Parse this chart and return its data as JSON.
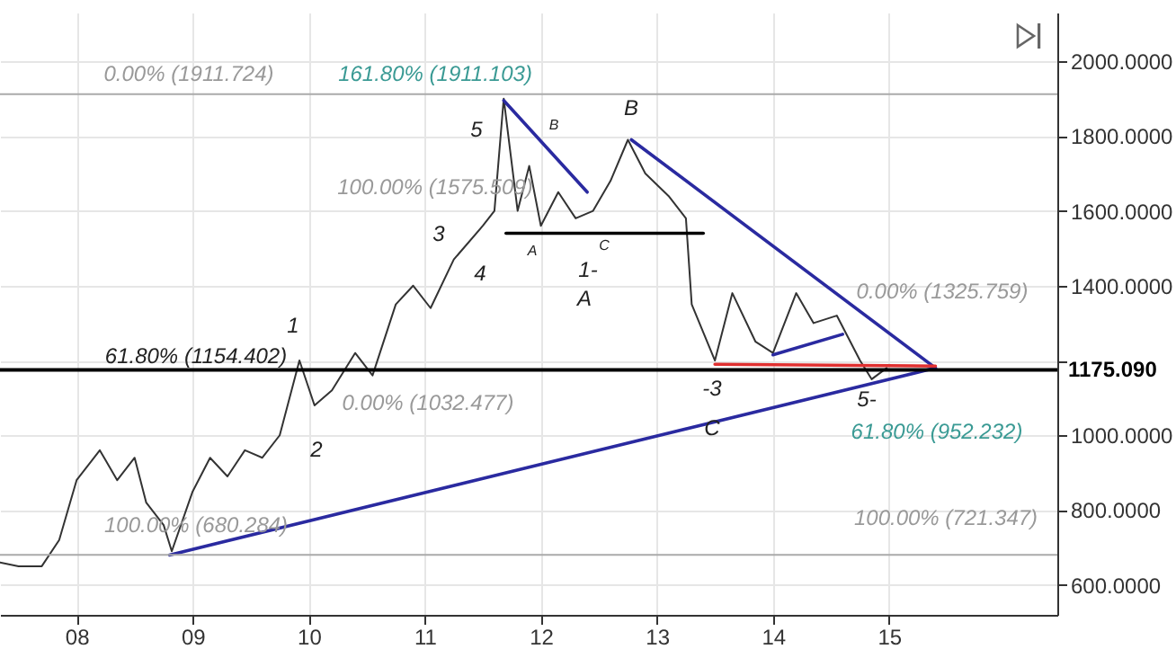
{
  "chart_data": {
    "type": "line",
    "xlim": [
      2007.34,
      2016.45
    ],
    "ylim": [
      520,
      2130
    ],
    "xticks": [
      {
        "value": 2008,
        "label": "08"
      },
      {
        "value": 2009,
        "label": "09"
      },
      {
        "value": 2010,
        "label": "10"
      },
      {
        "value": 2011,
        "label": "11"
      },
      {
        "value": 2012,
        "label": "12"
      },
      {
        "value": 2013,
        "label": "13"
      },
      {
        "value": 2014,
        "label": "14"
      },
      {
        "value": 2015,
        "label": "15"
      }
    ],
    "yticks": [
      {
        "value": 600,
        "label": "600.0000"
      },
      {
        "value": 800,
        "label": "800.0000"
      },
      {
        "value": 1000,
        "label": "1000.0000"
      },
      {
        "value": 1200,
        "label": null
      },
      {
        "value": 1400,
        "label": "1400.0000"
      },
      {
        "value": 1600,
        "label": "1600.0000"
      },
      {
        "value": 1800,
        "label": "1800.0000"
      },
      {
        "value": 2000,
        "label": "2000.0000"
      }
    ],
    "grid": true,
    "series": [
      {
        "color": "#333333",
        "x": [
          2007.34,
          2007.5,
          2007.7,
          2007.85,
          2008.0,
          2008.2,
          2008.35,
          2008.5,
          2008.6,
          2008.75,
          2008.82,
          2009.0,
          2009.15,
          2009.3,
          2009.45,
          2009.6,
          2009.75,
          2009.92,
          2010.05,
          2010.2,
          2010.4,
          2010.55,
          2010.75,
          2010.9,
          2011.05,
          2011.25,
          2011.5,
          2011.6,
          2011.68,
          2011.8,
          2011.9,
          2012.0,
          2012.15,
          2012.3,
          2012.45,
          2012.6,
          2012.75,
          2012.9,
          2013.1,
          2013.25,
          2013.3,
          2013.5,
          2013.65,
          2013.85,
          2014.0,
          2014.2,
          2014.35,
          2014.55,
          2014.75,
          2014.85,
          2014.98
        ],
        "values": [
          660,
          650,
          650,
          720,
          880,
          960,
          880,
          940,
          820,
          760,
          690,
          850,
          940,
          890,
          960,
          940,
          1000,
          1200,
          1080,
          1120,
          1220,
          1160,
          1350,
          1400,
          1340,
          1470,
          1560,
          1600,
          1900,
          1600,
          1720,
          1560,
          1650,
          1580,
          1600,
          1680,
          1790,
          1700,
          1640,
          1580,
          1350,
          1200,
          1380,
          1250,
          1220,
          1380,
          1300,
          1320,
          1200,
          1150,
          1180
        ]
      },
      {
        "color": "#2a2aa0",
        "x": [
          2008.8,
          2015.4
        ],
        "values": [
          680,
          1180
        ]
      },
      {
        "color": "#2a2aa0",
        "x": [
          2011.68,
          2012.4
        ],
        "values": [
          1895,
          1650
        ]
      },
      {
        "color": "#2a2aa0",
        "x": [
          2012.78,
          2015.4
        ],
        "values": [
          1790,
          1180
        ]
      },
      {
        "color": "#2a2aa0",
        "x": [
          2014.0,
          2014.6
        ],
        "values": [
          1215,
          1270
        ]
      },
      {
        "color": "#e03030",
        "x": [
          2013.5,
          2015.4
        ],
        "values": [
          1190,
          1185
        ]
      },
      {
        "color": "#000000",
        "x": [
          2011.7,
          2013.4
        ],
        "values": [
          1540,
          1540
        ]
      }
    ],
    "ref_lines": [
      {
        "axis": "y",
        "value": 1911.724,
        "color": "#aaaaaa"
      },
      {
        "axis": "y",
        "value": 680.284,
        "color": "#aaaaaa"
      },
      {
        "axis": "y",
        "value": 1175.09,
        "label": "1175.090",
        "color": "#000000"
      }
    ],
    "annotations": [
      "0.00% (1911.724)",
      "161.80% (1911.103)",
      "100.00% (1575.509)",
      "61.80% (1154.402)",
      "0.00% (1032.477)",
      "100.00% (680.284)",
      "0.00% (1325.759)",
      "61.80% (952.232)",
      "100.00% (721.347)",
      "1",
      "2",
      "3",
      "4",
      "5",
      "B",
      "A",
      "B",
      "C",
      "1-",
      "A",
      "-3",
      "C",
      "5-"
    ]
  }
}
